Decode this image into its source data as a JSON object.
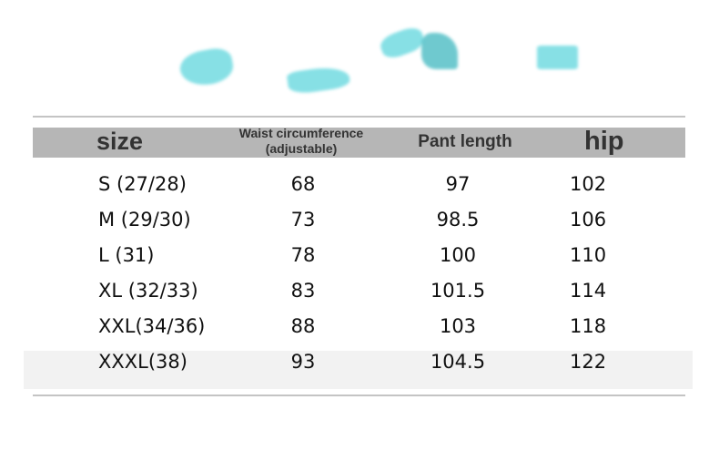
{
  "headers": {
    "size": "size",
    "waist": "Waist circumference",
    "waist_sub": "(adjustable)",
    "length": "Pant length",
    "hip": "hip"
  },
  "rows": [
    {
      "size": "S (27/28)",
      "waist": "68",
      "length": "97",
      "hip": "102"
    },
    {
      "size": "M (29/30)",
      "waist": "73",
      "length": "98.5",
      "hip": "106"
    },
    {
      "size": "L (31)",
      "waist": "78",
      "length": "100",
      "hip": "110"
    },
    {
      "size": "XL (32/33)",
      "waist": "83",
      "length": "101.5",
      "hip": "114"
    },
    {
      "size": "XXL(34/36)",
      "waist": "88",
      "length": "103",
      "hip": "118"
    },
    {
      "size": "XXXL(38)",
      "waist": "93",
      "length": "104.5",
      "hip": "122"
    }
  ],
  "colors": {
    "header_bg": "#b6b6b6",
    "decor": "#5fd6dd"
  }
}
